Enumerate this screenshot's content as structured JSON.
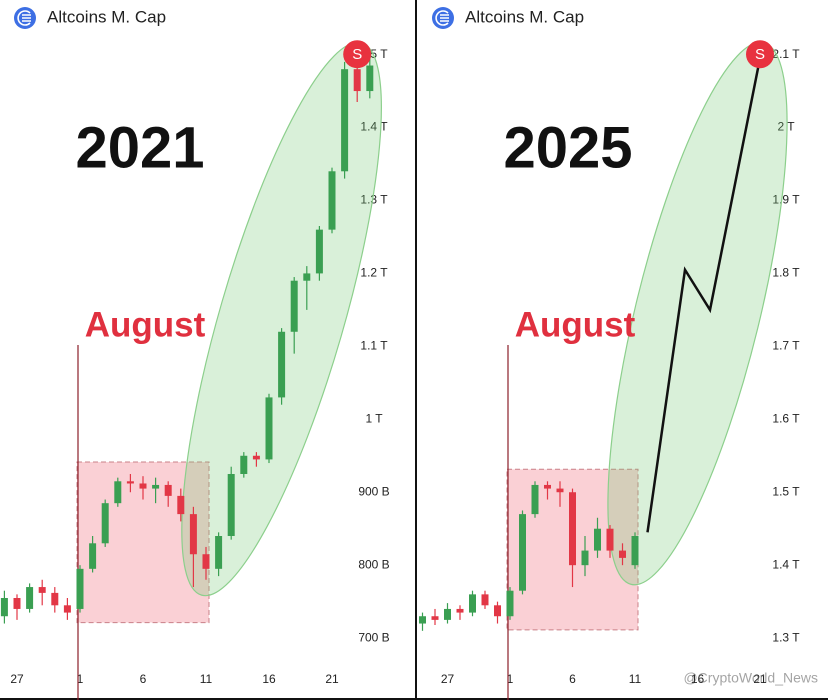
{
  "chart_data": [
    {
      "type": "candlestick",
      "title": "Altcoins M. Cap",
      "annotations": {
        "year": "2021",
        "month": "August",
        "signal": "S"
      },
      "categories": [
        null,
        "27",
        null,
        null,
        null,
        null,
        "1",
        null,
        null,
        null,
        null,
        "6",
        null,
        null,
        null,
        null,
        "11",
        null,
        null,
        null,
        null,
        "16",
        null,
        null,
        null,
        null,
        "21",
        null,
        null,
        null
      ],
      "open": [
        730,
        755,
        740,
        770,
        762,
        745,
        740,
        795,
        830,
        885,
        915,
        912,
        905,
        910,
        895,
        870,
        815,
        795,
        840,
        925,
        950,
        945,
        1030,
        1120,
        1190,
        1200,
        1260,
        1340,
        1480,
        1450
      ],
      "high": [
        765,
        760,
        775,
        780,
        770,
        755,
        800,
        840,
        890,
        920,
        925,
        922,
        920,
        915,
        905,
        880,
        825,
        845,
        935,
        955,
        955,
        1035,
        1125,
        1195,
        1210,
        1265,
        1345,
        1490,
        1495,
        1495
      ],
      "low": [
        720,
        725,
        735,
        745,
        735,
        725,
        735,
        790,
        825,
        880,
        900,
        890,
        885,
        880,
        860,
        770,
        780,
        785,
        835,
        920,
        935,
        940,
        1020,
        1090,
        1150,
        1190,
        1255,
        1330,
        1435,
        1440
      ],
      "close": [
        755,
        740,
        770,
        762,
        745,
        735,
        795,
        830,
        885,
        915,
        912,
        905,
        910,
        895,
        870,
        815,
        795,
        840,
        925,
        950,
        945,
        1030,
        1120,
        1190,
        1200,
        1260,
        1340,
        1480,
        1450,
        1485
      ],
      "up_color": "#3a9f52",
      "down_color": "#e23746",
      "ylim": [
        670,
        1520
      ],
      "yticks": [
        {
          "value": 1500,
          "label": "1.5 T"
        },
        {
          "value": 1400,
          "label": "1.4 T"
        },
        {
          "value": 1300,
          "label": "1.3 T"
        },
        {
          "value": 1200,
          "label": "1.2 T"
        },
        {
          "value": 1100,
          "label": "1.1 T"
        },
        {
          "value": 1000,
          "label": "1 T"
        },
        {
          "value": 900,
          "label": "900 B"
        },
        {
          "value": 800,
          "label": "800 B"
        },
        {
          "value": 700,
          "label": "700 B"
        }
      ]
    },
    {
      "type": "candlestick",
      "title": "Altcoins M. Cap",
      "annotations": {
        "year": "2025",
        "month": "August",
        "signal": "S"
      },
      "categories": [
        null,
        null,
        "27",
        null,
        null,
        null,
        null,
        "1",
        null,
        null,
        null,
        null,
        "6",
        null,
        null,
        null,
        null,
        "11",
        null,
        null,
        null,
        null,
        "16",
        null,
        null,
        null,
        null,
        "21",
        null,
        null
      ],
      "open": [
        1320,
        1330,
        1325,
        1340,
        1335,
        1360,
        1345,
        1330,
        1365,
        1470,
        1510,
        1505,
        1500,
        1400,
        1420,
        1450,
        1420,
        1400,
        null,
        null,
        null,
        null,
        null,
        null,
        null,
        null,
        null,
        null,
        null,
        null
      ],
      "high": [
        1335,
        1340,
        1348,
        1345,
        1365,
        1365,
        1350,
        1370,
        1475,
        1515,
        1515,
        1515,
        1505,
        1440,
        1465,
        1455,
        1430,
        1445,
        null,
        null,
        null,
        null,
        null,
        null,
        null,
        null,
        null,
        null,
        null,
        null
      ],
      "low": [
        1310,
        1318,
        1320,
        1325,
        1330,
        1340,
        1320,
        1325,
        1360,
        1465,
        1490,
        1480,
        1370,
        1385,
        1410,
        1410,
        1400,
        1395,
        null,
        null,
        null,
        null,
        null,
        null,
        null,
        null,
        null,
        null,
        null,
        null
      ],
      "close": [
        1330,
        1325,
        1340,
        1335,
        1360,
        1345,
        1330,
        1365,
        1470,
        1510,
        1505,
        1500,
        1400,
        1420,
        1450,
        1420,
        1410,
        1440,
        null,
        null,
        null,
        null,
        null,
        null,
        null,
        null,
        null,
        null,
        null,
        null
      ],
      "projection": {
        "x": [
          12,
          15,
          17,
          21
        ],
        "values": [
          1445,
          1805,
          1750,
          2095
        ],
        "color": "#111111"
      },
      "up_color": "#3a9f52",
      "down_color": "#e23746",
      "ylim": [
        1270,
        2120
      ],
      "yticks": [
        {
          "value": 2100,
          "label": "2.1 T"
        },
        {
          "value": 2000,
          "label": "2 T"
        },
        {
          "value": 1900,
          "label": "1.9 T"
        },
        {
          "value": 1800,
          "label": "1.8 T"
        },
        {
          "value": 1700,
          "label": "1.7 T"
        },
        {
          "value": 1600,
          "label": "1.6 T"
        },
        {
          "value": 1500,
          "label": "1.5 T"
        },
        {
          "value": 1400,
          "label": "1.4 T"
        },
        {
          "value": 1300,
          "label": "1.3 T"
        }
      ],
      "watermark": "@CryptoWorld_News"
    }
  ]
}
